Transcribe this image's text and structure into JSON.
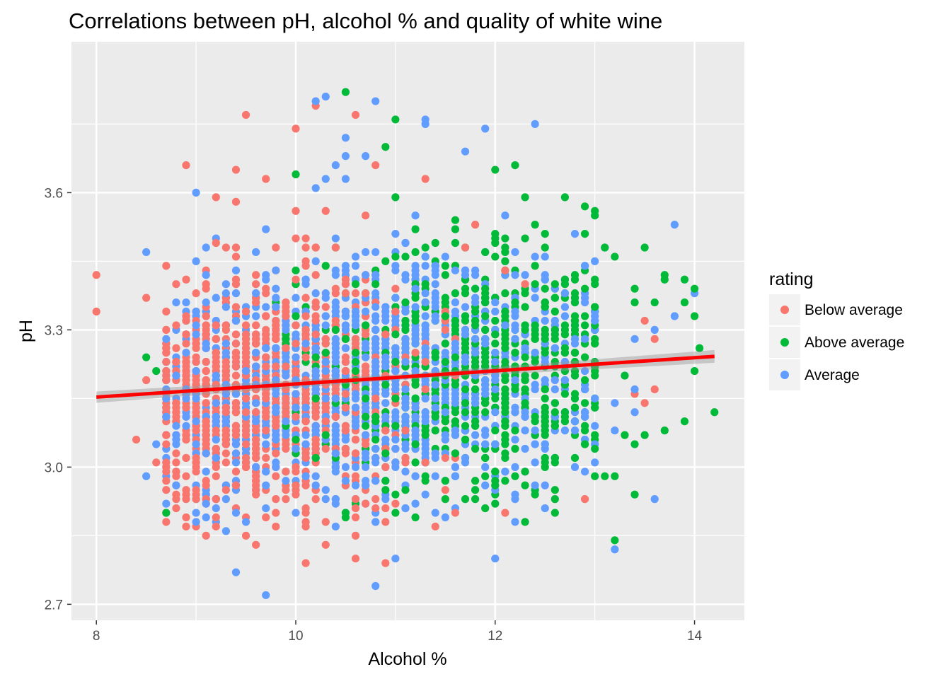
{
  "chart_data": {
    "type": "scatter",
    "title": "Correlations between pH, alcohol % and quality of white wine",
    "xlabel": "Alcohol %",
    "ylabel": "pH",
    "xlim": [
      7.75,
      14.5
    ],
    "ylim": [
      2.665,
      3.93
    ],
    "x_ticks": [
      8,
      10,
      12,
      14
    ],
    "x_tick_labels": [
      "8",
      "10",
      "12",
      "14"
    ],
    "y_ticks": [
      2.7,
      3.0,
      3.3,
      3.6
    ],
    "y_tick_labels": [
      "2.7",
      "3.0",
      "3.3",
      "3.6"
    ],
    "grid": true,
    "legend": {
      "title": "rating",
      "position": "right",
      "entries": [
        "Below average",
        "Above average",
        "Average"
      ]
    },
    "colors": {
      "Below average": "#F8766D",
      "Above average": "#00BA38",
      "Average": "#619CFF",
      "trend": "#FF0000",
      "panel": "#EBEBEB"
    },
    "trend_line": {
      "x": [
        8.0,
        14.2
      ],
      "y": [
        3.153,
        3.242
      ],
      "label": "linear fit"
    },
    "series": [
      {
        "name": "Below average",
        "points": [
          [
            8.0,
            3.42
          ],
          [
            8.0,
            3.34
          ],
          [
            9.5,
            3.77
          ],
          [
            10.0,
            3.74
          ],
          [
            10.2,
            3.79
          ],
          [
            10.6,
            3.77
          ],
          [
            10.8,
            3.66
          ],
          [
            8.9,
            3.66
          ],
          [
            9.4,
            3.65
          ],
          [
            9.7,
            3.63
          ],
          [
            11.3,
            3.63
          ],
          [
            9.2,
            3.59
          ],
          [
            9.4,
            3.58
          ],
          [
            10.0,
            3.56
          ],
          [
            10.3,
            3.56
          ],
          [
            10.7,
            3.55
          ],
          [
            11.8,
            3.53
          ],
          [
            11.7,
            3.48
          ],
          [
            12.1,
            3.43
          ],
          [
            12.3,
            3.4
          ],
          [
            13.5,
            3.32
          ],
          [
            13.6,
            3.28
          ],
          [
            13.4,
            3.16
          ],
          [
            13.5,
            3.14
          ],
          [
            8.4,
            3.06
          ],
          [
            8.6,
            3.01
          ],
          [
            8.7,
            2.9
          ],
          [
            9.0,
            2.87
          ],
          [
            9.1,
            2.85
          ],
          [
            9.5,
            2.85
          ],
          [
            9.6,
            2.83
          ],
          [
            10.1,
            2.79
          ],
          [
            10.3,
            2.83
          ],
          [
            10.6,
            2.85
          ],
          [
            10.6,
            2.8
          ],
          [
            10.9,
            2.79
          ],
          [
            11.4,
            2.87
          ],
          [
            11.6,
            2.9
          ],
          [
            12.1,
            2.9
          ],
          [
            12.9,
            2.93
          ],
          [
            13.6,
            3.17
          ],
          [
            11.5,
            2.95
          ],
          [
            10.1,
            2.87
          ],
          [
            8.5,
            3.19
          ],
          [
            8.5,
            3.37
          ]
        ]
      },
      {
        "name": "Above average",
        "points": [
          [
            10.5,
            3.82
          ],
          [
            11.0,
            3.76
          ],
          [
            10.9,
            3.7
          ],
          [
            10.0,
            3.64
          ],
          [
            12.0,
            3.65
          ],
          [
            12.2,
            3.66
          ],
          [
            11.0,
            3.59
          ],
          [
            12.3,
            3.59
          ],
          [
            12.7,
            3.59
          ],
          [
            12.9,
            3.57
          ],
          [
            13.0,
            3.56
          ],
          [
            13.0,
            3.55
          ],
          [
            11.6,
            3.54
          ],
          [
            12.4,
            3.53
          ],
          [
            12.5,
            3.51
          ],
          [
            12.5,
            3.48
          ],
          [
            11.9,
            3.47
          ],
          [
            13.1,
            3.48
          ],
          [
            13.2,
            3.46
          ],
          [
            13.5,
            3.48
          ],
          [
            13.4,
            3.39
          ],
          [
            13.6,
            3.36
          ],
          [
            13.4,
            3.36
          ],
          [
            13.7,
            3.42
          ],
          [
            13.7,
            3.41
          ],
          [
            13.9,
            3.41
          ],
          [
            14.0,
            3.39
          ],
          [
            13.9,
            3.36
          ],
          [
            14.0,
            3.33
          ],
          [
            14.0,
            3.21
          ],
          [
            14.05,
            3.26
          ],
          [
            14.2,
            3.12
          ],
          [
            13.9,
            3.1
          ],
          [
            13.7,
            3.08
          ],
          [
            13.5,
            3.07
          ],
          [
            13.3,
            3.07
          ],
          [
            13.4,
            3.05
          ],
          [
            13.4,
            2.94
          ],
          [
            13.2,
            2.98
          ],
          [
            13.1,
            2.98
          ],
          [
            13.2,
            2.84
          ],
          [
            12.6,
            2.9
          ],
          [
            10.5,
            2.9
          ],
          [
            8.7,
            2.9
          ],
          [
            8.5,
            3.24
          ],
          [
            8.6,
            3.21
          ],
          [
            13.3,
            3.2
          ],
          [
            13.0,
            3.13
          ]
        ]
      },
      {
        "name": "Average",
        "points": [
          [
            10.2,
            3.8
          ],
          [
            10.3,
            3.81
          ],
          [
            10.8,
            3.8
          ],
          [
            11.3,
            3.76
          ],
          [
            11.3,
            3.75
          ],
          [
            12.4,
            3.75
          ],
          [
            11.9,
            3.74
          ],
          [
            10.5,
            3.72
          ],
          [
            11.7,
            3.69
          ],
          [
            10.5,
            3.68
          ],
          [
            10.7,
            3.68
          ],
          [
            10.4,
            3.66
          ],
          [
            10.3,
            3.63
          ],
          [
            10.5,
            3.63
          ],
          [
            10.2,
            3.61
          ],
          [
            9.0,
            3.6
          ],
          [
            11.2,
            3.55
          ],
          [
            12.1,
            3.55
          ],
          [
            13.8,
            3.53
          ],
          [
            8.5,
            3.47
          ],
          [
            13.1,
            3.48
          ],
          [
            14.0,
            3.38
          ],
          [
            13.8,
            3.33
          ],
          [
            13.6,
            3.3
          ],
          [
            13.4,
            3.28
          ],
          [
            13.3,
            3.2
          ],
          [
            13.4,
            3.17
          ],
          [
            13.2,
            3.14
          ],
          [
            13.4,
            3.12
          ],
          [
            13.2,
            3.08
          ],
          [
            13.0,
            3.09
          ],
          [
            13.6,
            2.93
          ],
          [
            13.2,
            2.82
          ],
          [
            12.0,
            2.8
          ],
          [
            11.0,
            2.8
          ],
          [
            10.8,
            2.74
          ],
          [
            9.7,
            2.72
          ],
          [
            9.4,
            2.77
          ],
          [
            9.3,
            2.86
          ],
          [
            8.5,
            2.98
          ],
          [
            8.6,
            3.05
          ],
          [
            9.0,
            2.88
          ],
          [
            12.8,
            3.0
          ],
          [
            12.5,
            2.96
          ],
          [
            11.5,
            2.89
          ]
        ]
      }
    ],
    "dense_clusters": [
      {
        "series": "Below average",
        "x_range": [
          8.7,
          11.6
        ],
        "x_center": 9.5,
        "y_mean": 3.17,
        "y_sd": 0.13,
        "n": 1000
      },
      {
        "series": "Average",
        "x_range": [
          8.7,
          13.0
        ],
        "x_center": 10.6,
        "y_mean": 3.19,
        "y_sd": 0.13,
        "n": 1300
      },
      {
        "series": "Above average",
        "x_range": [
          9.8,
          13.0
        ],
        "x_center": 11.9,
        "y_mean": 3.21,
        "y_sd": 0.13,
        "n": 700
      }
    ]
  }
}
